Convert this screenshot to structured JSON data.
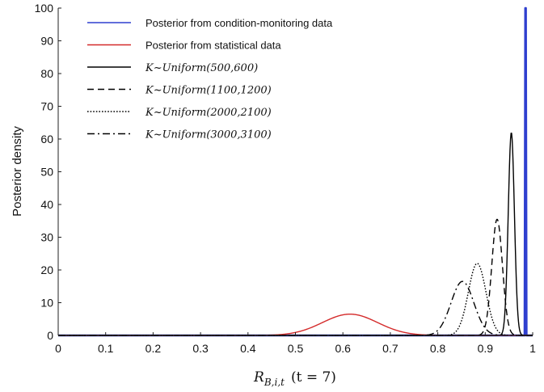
{
  "chart_data": {
    "type": "line",
    "title": "",
    "xlabel": "R_{B,i,t}  (t = 7)",
    "xlabel_parts": {
      "main": "R",
      "sub": "B,i,t",
      "suffix": "(t = 7)"
    },
    "ylabel": "Posterior density",
    "xlim": [
      0,
      1
    ],
    "ylim": [
      0,
      100
    ],
    "xticks": [
      "0",
      "0.1",
      "0.2",
      "0.3",
      "0.4",
      "0.5",
      "0.6",
      "0.7",
      "0.8",
      "0.9",
      "1"
    ],
    "yticks": [
      "0",
      "10",
      "20",
      "30",
      "40",
      "50",
      "60",
      "70",
      "80",
      "90",
      "100"
    ],
    "grid": false,
    "legend_position": "top-left",
    "series": [
      {
        "name": "Posterior from condition-monitoring data",
        "color": "#2f3fcf",
        "style": "solid",
        "shape": "spike",
        "center": 0.985,
        "peak": 100,
        "width": 0.002
      },
      {
        "name": "Posterior from statistical data",
        "color": "#d42a2a",
        "style": "solid",
        "shape": "gaussian",
        "center": 0.615,
        "peak": 6.5,
        "sigma": 0.058
      },
      {
        "name": "K~Uniform(500,600)",
        "color": "#000000",
        "style": "solid",
        "shape": "gaussian",
        "center": 0.955,
        "peak": 62,
        "sigma": 0.0065
      },
      {
        "name": "K~Uniform(1100,1200)",
        "color": "#000000",
        "style": "dashed",
        "shape": "gaussian",
        "center": 0.925,
        "peak": 35.5,
        "sigma": 0.0112
      },
      {
        "name": "K~Uniform(2000,2100)",
        "color": "#000000",
        "style": "dotted",
        "shape": "gaussian",
        "center": 0.883,
        "peak": 22,
        "sigma": 0.0185
      },
      {
        "name": "K~Uniform(3000,3100)",
        "color": "#000000",
        "style": "dashdot",
        "shape": "gaussian",
        "center": 0.852,
        "peak": 16.5,
        "sigma": 0.024
      }
    ]
  }
}
